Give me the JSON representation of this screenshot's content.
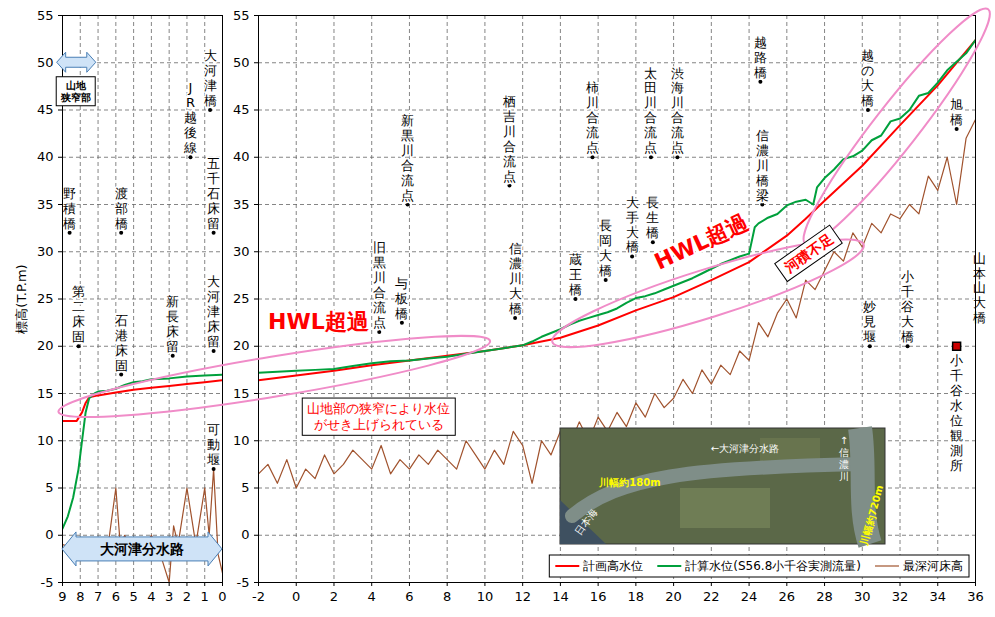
{
  "chart_data": [
    {
      "type": "line",
      "ylabel": "標高(T.P.m)",
      "xlim": [
        9,
        0
      ],
      "xticks": [
        9,
        8,
        7,
        6,
        5,
        4,
        3,
        2,
        1,
        0
      ],
      "ylim": [
        -5,
        55
      ],
      "yticks": [
        -5,
        0,
        5,
        10,
        15,
        20,
        25,
        30,
        35,
        40,
        45,
        50,
        55
      ],
      "grid": true,
      "series": [
        {
          "color": "#ff0000",
          "x": [
            9,
            8.2,
            7.9,
            7.7,
            7.5,
            7,
            6,
            5,
            4,
            3,
            2,
            1,
            0
          ],
          "values": [
            12.1,
            12.1,
            13,
            14,
            14.6,
            14.8,
            15.1,
            15.4,
            15.6,
            15.8,
            16,
            16.2,
            16.4
          ]
        },
        {
          "color": "#00a03c",
          "x": [
            9,
            8.7,
            8.4,
            8.1,
            7.9,
            7.7,
            7.5,
            7.2,
            7,
            6.5,
            6,
            5.5,
            5,
            4.5,
            4,
            3,
            2,
            1,
            0
          ],
          "values": [
            0.7,
            2,
            4,
            7,
            10,
            13,
            14.5,
            15,
            15.2,
            15.3,
            15.5,
            15.9,
            16.2,
            16.3,
            16.5,
            16.6,
            16.8,
            16.9,
            17
          ]
        },
        {
          "color": "#a0522d",
          "x": [
            9,
            8,
            7,
            6.5,
            6,
            5.75,
            5.5,
            5,
            4.5,
            4,
            3.5,
            3,
            2.75,
            2.5,
            2,
            1.5,
            1,
            0.75,
            0.5,
            0.25,
            0
          ],
          "values": [
            -1,
            -1.5,
            -1,
            -2,
            5,
            -1,
            0,
            -2,
            -1.5,
            0,
            -2,
            -5,
            1,
            -1,
            5,
            -1,
            5,
            0,
            7,
            -2,
            -4
          ]
        }
      ],
      "labels": [
        {
          "text": "野積橋",
          "x": 8.6,
          "y": 32
        },
        {
          "text": "第二床固",
          "x": 8.1,
          "y": 20
        },
        {
          "text": "渡部橋",
          "x": 5.7,
          "y": 32
        },
        {
          "text": "石港床固",
          "x": 5.7,
          "y": 17
        },
        {
          "text": "新長床留",
          "x": 2.8,
          "y": 19
        },
        {
          "text": "大河津橋",
          "x": 0.7,
          "y": 45
        },
        {
          "text": "JR越後線",
          "x": 1.8,
          "y": 40
        },
        {
          "text": "五千石床留",
          "x": 0.5,
          "y": 32
        },
        {
          "text": "大河津床留",
          "x": 0.5,
          "y": 19.5
        },
        {
          "text": "可動堰",
          "x": 0.5,
          "y": 7
        }
      ],
      "spans": [
        {
          "text": "山地\n狭窄部",
          "x": [
            9.3,
            7.1
          ],
          "y": 50
        },
        {
          "text": "大河津分水路",
          "x": [
            9,
            0
          ],
          "y": -1.5
        }
      ]
    },
    {
      "type": "line",
      "xlim": [
        -2,
        36
      ],
      "xticks": [
        -2,
        0,
        2,
        4,
        6,
        8,
        10,
        12,
        14,
        16,
        18,
        20,
        22,
        24,
        26,
        28,
        30,
        32,
        34,
        36
      ],
      "ylim": [
        -5,
        55
      ],
      "yticks": [
        -5,
        0,
        5,
        10,
        15,
        20,
        25,
        30,
        35,
        40,
        45,
        50,
        55
      ],
      "grid": true,
      "legend": "bottom-right",
      "series": [
        {
          "name": "計画高水位",
          "color": "#ff0000",
          "x": [
            -2,
            0,
            2,
            4,
            6,
            8,
            10,
            12,
            14,
            16,
            18,
            20,
            22,
            24,
            26,
            27,
            28,
            30,
            32,
            34,
            36
          ],
          "values": [
            16.4,
            16.9,
            17.4,
            18,
            18.5,
            19,
            19.5,
            20.1,
            20.9,
            22.2,
            23.8,
            25.2,
            27,
            28.9,
            31.7,
            33.5,
            35.4,
            39.1,
            43.4,
            47.6,
            52.4
          ]
        },
        {
          "name": "計算水位(S56.8小千谷実測流量)",
          "color": "#00a03c",
          "x": [
            -2,
            -1,
            0,
            1,
            2,
            3,
            4,
            5,
            6,
            7,
            8,
            9,
            10,
            11,
            12,
            12.5,
            13,
            13.5,
            14,
            14.5,
            15,
            15.5,
            16,
            16.5,
            17,
            17.5,
            18,
            18.5,
            19,
            19.5,
            20,
            20.5,
            21,
            21.5,
            22,
            22.5,
            23,
            23.5,
            24,
            24.3,
            24.5,
            25,
            25.5,
            26,
            26.5,
            27,
            27.4,
            27.6,
            28,
            28.5,
            29,
            29.5,
            30,
            30.5,
            31,
            31.5,
            32,
            32.5,
            33,
            33.5,
            34,
            34.5,
            35,
            35.5,
            36
          ],
          "values": [
            17.2,
            17.3,
            17.4,
            17.5,
            17.6,
            17.9,
            18.2,
            18.4,
            18.5,
            18.7,
            18.9,
            19.2,
            19.5,
            19.8,
            20.1,
            20.5,
            21,
            21.4,
            21.8,
            22.3,
            22.7,
            23,
            23.3,
            23.6,
            24,
            24.6,
            25.1,
            25.3,
            25.6,
            26,
            26.4,
            26.8,
            27.2,
            27.7,
            28.2,
            28.7,
            29.1,
            29.5,
            29.8,
            32.6,
            33,
            33.6,
            34,
            34.9,
            35.3,
            35.5,
            35.0,
            36.8,
            37.8,
            38.7,
            39.8,
            40.1,
            40.7,
            41.8,
            42.3,
            43.8,
            44.1,
            45,
            46.5,
            46.8,
            47.9,
            49.2,
            50.1,
            51,
            52.4
          ]
        },
        {
          "name": "最深河床高",
          "color": "#a0522d",
          "x": [
            -2,
            -1.5,
            -1,
            -0.5,
            0,
            0.5,
            1,
            1.5,
            2,
            2.5,
            3,
            3.5,
            4,
            4.5,
            5,
            5.5,
            6,
            6.5,
            7,
            7.5,
            8,
            8.5,
            9,
            9.5,
            10,
            10.5,
            11,
            11.5,
            12,
            12.5,
            13,
            13.5,
            14,
            14.5,
            15,
            15.5,
            16,
            16.5,
            17,
            17.5,
            18,
            18.5,
            19,
            19.5,
            20,
            20.5,
            21,
            21.5,
            22,
            22.5,
            23,
            23.5,
            24,
            24.5,
            25,
            25.5,
            26,
            26.5,
            27,
            27.5,
            28,
            28.5,
            29,
            29.5,
            30,
            30.5,
            31,
            31.5,
            32,
            32.5,
            33,
            33.5,
            34,
            34.5,
            35,
            35.5,
            36
          ],
          "values": [
            6.5,
            7.5,
            5.5,
            8,
            5,
            7,
            6,
            8.5,
            6.5,
            7.5,
            9,
            8,
            7,
            9.5,
            6.5,
            8,
            7,
            8.5,
            7.5,
            9,
            8,
            7,
            10,
            8.5,
            7,
            9,
            7.5,
            11,
            9.5,
            5.5,
            10,
            8.5,
            11,
            9.5,
            12,
            10,
            12.5,
            11,
            13,
            11.5,
            14,
            12.5,
            15,
            13.5,
            14.5,
            16.5,
            15,
            17.5,
            16,
            18,
            17,
            19.5,
            18.5,
            22.5,
            21,
            23.5,
            25,
            23,
            27,
            26,
            28,
            30,
            29,
            32,
            30.5,
            33,
            32,
            34,
            33.5,
            35,
            34,
            38,
            36.5,
            40,
            35,
            42,
            44
          ]
        }
      ],
      "labels": [
        {
          "text": "旧黒川合流点",
          "x": 4.4,
          "y": 21.5
        },
        {
          "text": "与板橋",
          "x": 5.6,
          "y": 22.5
        },
        {
          "text": "新黒川合流点",
          "x": 5.9,
          "y": 35
        },
        {
          "text": "栖吉川合流点",
          "x": 11.3,
          "y": 37
        },
        {
          "text": "信濃川大橋",
          "x": 11.6,
          "y": 23
        },
        {
          "text": "蔵王橋",
          "x": 14.8,
          "y": 25
        },
        {
          "text": "柿川合流点",
          "x": 15.7,
          "y": 40
        },
        {
          "text": "長岡大橋",
          "x": 16.4,
          "y": 27
        },
        {
          "text": "大手大橋",
          "x": 17.8,
          "y": 29.5
        },
        {
          "text": "太田川合流点",
          "x": 18.8,
          "y": 40
        },
        {
          "text": "長生橋",
          "x": 18.9,
          "y": 31
        },
        {
          "text": "渋海川合流点",
          "x": 20.2,
          "y": 40
        },
        {
          "text": "越路橋",
          "x": 24.6,
          "y": 48
        },
        {
          "text": "信濃川橋梁",
          "x": 24.7,
          "y": 35
        },
        {
          "text": "越の大橋",
          "x": 30.3,
          "y": 45
        },
        {
          "text": "妙見堰",
          "x": 30.4,
          "y": 20
        },
        {
          "text": "小千谷大橋",
          "x": 32.4,
          "y": 20
        },
        {
          "text": "旭橋",
          "x": 35,
          "y": 43
        },
        {
          "text": "山本山大橋",
          "x": 36.2,
          "y": 22
        }
      ],
      "gauge": {
        "text": "小千谷水位観測所",
        "x": 35,
        "y": 20,
        "color": "#cc0000",
        "marker": "square"
      },
      "annotations": [
        {
          "text": "HWL超過",
          "x": 1.2,
          "y": 22.6,
          "color": "#ff0000"
        },
        {
          "text": "HWL超過",
          "x": 21.5,
          "y": 31,
          "color": "#ff0000"
        }
      ],
      "boxed_notes": [
        {
          "text": "山地部の狭窄により水位\nがせき上げられている",
          "x": 4.4,
          "y": 12.5,
          "color": "#ff0000"
        },
        {
          "text": "河積不足",
          "x": 27.2,
          "y": 29.8,
          "color": "#ff0000"
        }
      ],
      "inset": [
        {
          "text": "←大河津分水路",
          "color": "#ffffff"
        },
        {
          "text": "川幅約180m",
          "color": "#ffff00"
        },
        {
          "text": "↑信濃川",
          "color": "#ffffff"
        },
        {
          "text": "川幅約720m",
          "color": "#ffff00"
        },
        {
          "text": "日本海",
          "color": "#ffffff"
        }
      ]
    }
  ]
}
